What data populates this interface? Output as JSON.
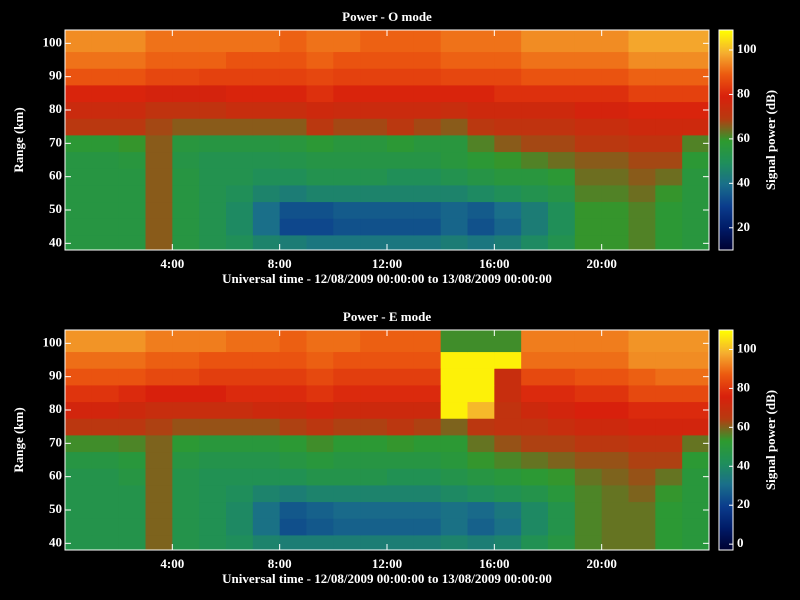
{
  "chart_data": [
    {
      "type": "heatmap",
      "title": "Power - O mode",
      "xlabel": "Universal time - 12/08/2009 00:00:00 to 13/08/2009 00:00:00",
      "ylabel": "Range (km)",
      "colorbar_label": "Signal power (dB)",
      "xlim": [
        0,
        24
      ],
      "xticks": [
        {
          "value": 4,
          "label": "4:00"
        },
        {
          "value": 8,
          "label": "8:00"
        },
        {
          "value": 12,
          "label": "12:00"
        },
        {
          "value": 16,
          "label": "16:00"
        },
        {
          "value": 20,
          "label": "20:00"
        }
      ],
      "ylim": [
        38,
        104
      ],
      "yticks": [
        40,
        50,
        60,
        70,
        80,
        90,
        100
      ],
      "zlim": [
        10,
        109
      ],
      "zticks": [
        20,
        40,
        60,
        80,
        100
      ],
      "colorscale": [
        "#000030",
        "#001a66",
        "#0a3c8c",
        "#1a6e8a",
        "#1f8f5a",
        "#2e9a2e",
        "#b83a10",
        "#d8200c",
        "#ec5a10",
        "#f5b030",
        "#ffff00"
      ],
      "x": [
        0.5,
        1.5,
        2.5,
        3.5,
        4.5,
        5.5,
        6.5,
        7.5,
        8.5,
        9.5,
        10.5,
        11.5,
        12.5,
        13.5,
        14.5,
        15.5,
        16.5,
        17.5,
        18.5,
        19.5,
        20.5,
        21.5,
        22.5,
        23.5
      ],
      "y": [
        40,
        45,
        50,
        55,
        60,
        65,
        70,
        75,
        80,
        85,
        90,
        95,
        100
      ],
      "z": [
        [
          55,
          55,
          55,
          66,
          55,
          52,
          50,
          46,
          44,
          42,
          42,
          42,
          42,
          42,
          44,
          42,
          44,
          48,
          52,
          60,
          60,
          62,
          58,
          56
        ],
        [
          55,
          55,
          55,
          66,
          55,
          52,
          48,
          40,
          32,
          32,
          34,
          34,
          34,
          34,
          38,
          34,
          38,
          44,
          50,
          60,
          60,
          62,
          58,
          56
        ],
        [
          55,
          55,
          55,
          66,
          55,
          52,
          48,
          40,
          34,
          34,
          36,
          36,
          36,
          36,
          38,
          36,
          40,
          44,
          50,
          60,
          60,
          62,
          58,
          56
        ],
        [
          55,
          55,
          55,
          66,
          55,
          52,
          50,
          46,
          44,
          46,
          46,
          46,
          46,
          46,
          46,
          48,
          50,
          52,
          54,
          62,
          62,
          64,
          60,
          56
        ],
        [
          55,
          55,
          55,
          66,
          55,
          52,
          52,
          50,
          50,
          52,
          52,
          52,
          50,
          50,
          52,
          54,
          56,
          56,
          58,
          64,
          64,
          66,
          64,
          56
        ],
        [
          55,
          55,
          56,
          66,
          54,
          52,
          52,
          52,
          53,
          54,
          54,
          54,
          54,
          54,
          56,
          58,
          60,
          62,
          64,
          66,
          66,
          68,
          68,
          58
        ],
        [
          58,
          58,
          60,
          66,
          56,
          55,
          55,
          55,
          56,
          58,
          56,
          56,
          58,
          56,
          56,
          62,
          66,
          68,
          68,
          70,
          70,
          72,
          72,
          62
        ],
        [
          70,
          70,
          70,
          68,
          66,
          66,
          66,
          66,
          66,
          70,
          68,
          68,
          70,
          68,
          66,
          70,
          72,
          72,
          72,
          74,
          74,
          76,
          76,
          76
        ],
        [
          75,
          75,
          75,
          72,
          72,
          72,
          74,
          74,
          74,
          76,
          75,
          75,
          75,
          75,
          74,
          76,
          76,
          76,
          76,
          78,
          78,
          80,
          80,
          80
        ],
        [
          80,
          80,
          80,
          78,
          78,
          78,
          80,
          80,
          80,
          82,
          80,
          80,
          80,
          80,
          80,
          80,
          82,
          82,
          82,
          82,
          82,
          85,
          85,
          85
        ],
        [
          88,
          88,
          88,
          86,
          86,
          85,
          85,
          85,
          85,
          86,
          85,
          85,
          85,
          85,
          86,
          86,
          86,
          88,
          88,
          88,
          88,
          90,
          90,
          90
        ],
        [
          92,
          92,
          92,
          90,
          90,
          90,
          88,
          88,
          88,
          90,
          88,
          88,
          88,
          88,
          90,
          90,
          90,
          92,
          92,
          92,
          92,
          95,
          95,
          95
        ],
        [
          95,
          95,
          95,
          92,
          92,
          92,
          92,
          92,
          90,
          92,
          92,
          90,
          90,
          90,
          92,
          92,
          92,
          95,
          95,
          95,
          95,
          98,
          98,
          98
        ]
      ]
    },
    {
      "type": "heatmap",
      "title": "Power - E mode",
      "xlabel": "Universal time - 12/08/2009 00:00:00 to 13/08/2009 00:00:00",
      "ylabel": "Range (km)",
      "colorbar_label": "Signal power (dB)",
      "xlim": [
        0,
        24
      ],
      "xticks": [
        {
          "value": 4,
          "label": "4:00"
        },
        {
          "value": 8,
          "label": "8:00"
        },
        {
          "value": 12,
          "label": "12:00"
        },
        {
          "value": 16,
          "label": "16:00"
        },
        {
          "value": 20,
          "label": "20:00"
        }
      ],
      "ylim": [
        38,
        104
      ],
      "yticks": [
        40,
        50,
        60,
        70,
        80,
        90,
        100
      ],
      "zlim": [
        -3,
        110
      ],
      "zticks": [
        0,
        20,
        40,
        60,
        80,
        100
      ],
      "colorscale": [
        "#000030",
        "#001a66",
        "#0a3c8c",
        "#1a6e8a",
        "#1f8f5a",
        "#2e9a2e",
        "#b83a10",
        "#d8200c",
        "#ec5a10",
        "#f5b030",
        "#ffff00"
      ],
      "x": [
        0.5,
        1.5,
        2.5,
        3.5,
        4.5,
        5.5,
        6.5,
        7.5,
        8.5,
        9.5,
        10.5,
        11.5,
        12.5,
        13.5,
        14.5,
        15.5,
        16.5,
        17.5,
        18.5,
        19.5,
        20.5,
        21.5,
        22.5,
        23.5
      ],
      "y": [
        40,
        45,
        50,
        55,
        60,
        65,
        70,
        75,
        80,
        85,
        90,
        95,
        100
      ],
      "z": [
        [
          46,
          46,
          46,
          60,
          46,
          44,
          42,
          38,
          36,
          36,
          36,
          36,
          36,
          36,
          38,
          36,
          38,
          44,
          48,
          56,
          58,
          58,
          52,
          50
        ],
        [
          46,
          46,
          46,
          60,
          46,
          44,
          40,
          32,
          24,
          26,
          28,
          28,
          28,
          28,
          32,
          28,
          32,
          40,
          46,
          56,
          58,
          58,
          52,
          50
        ],
        [
          46,
          46,
          46,
          60,
          46,
          44,
          40,
          32,
          26,
          28,
          30,
          30,
          30,
          30,
          32,
          30,
          34,
          40,
          46,
          56,
          58,
          58,
          52,
          50
        ],
        [
          46,
          46,
          46,
          60,
          46,
          44,
          42,
          38,
          36,
          38,
          38,
          38,
          38,
          38,
          40,
          42,
          44,
          46,
          50,
          56,
          58,
          60,
          54,
          50
        ],
        [
          46,
          46,
          48,
          60,
          46,
          44,
          44,
          44,
          44,
          46,
          46,
          46,
          44,
          44,
          46,
          48,
          50,
          52,
          54,
          58,
          60,
          62,
          58,
          50
        ],
        [
          48,
          48,
          50,
          60,
          48,
          46,
          46,
          46,
          48,
          50,
          48,
          48,
          48,
          48,
          50,
          54,
          56,
          58,
          60,
          62,
          62,
          64,
          64,
          52
        ],
        [
          55,
          55,
          56,
          60,
          52,
          50,
          50,
          50,
          52,
          55,
          52,
          52,
          54,
          52,
          52,
          58,
          62,
          64,
          64,
          66,
          66,
          68,
          68,
          58
        ],
        [
          66,
          66,
          66,
          64,
          62,
          62,
          62,
          62,
          64,
          66,
          64,
          64,
          66,
          64,
          60,
          66,
          68,
          68,
          70,
          72,
          72,
          74,
          74,
          74
        ],
        [
          74,
          74,
          72,
          70,
          70,
          70,
          70,
          72,
          72,
          74,
          72,
          72,
          72,
          72,
          108,
          100,
          68,
          72,
          74,
          76,
          76,
          78,
          78,
          78
        ],
        [
          80,
          80,
          78,
          76,
          76,
          76,
          78,
          78,
          78,
          80,
          78,
          78,
          78,
          78,
          108,
          108,
          70,
          78,
          78,
          80,
          80,
          84,
          84,
          84
        ],
        [
          86,
          86,
          86,
          84,
          84,
          82,
          82,
          82,
          82,
          84,
          82,
          82,
          82,
          82,
          108,
          108,
          70,
          84,
          84,
          86,
          86,
          88,
          90,
          90
        ],
        [
          90,
          90,
          90,
          88,
          88,
          86,
          86,
          86,
          86,
          88,
          86,
          86,
          86,
          86,
          108,
          108,
          108,
          90,
          90,
          90,
          90,
          94,
          94,
          94
        ],
        [
          95,
          95,
          95,
          92,
          92,
          92,
          90,
          90,
          88,
          90,
          90,
          88,
          88,
          88,
          55,
          55,
          55,
          92,
          92,
          92,
          92,
          95,
          95,
          95
        ]
      ]
    }
  ]
}
